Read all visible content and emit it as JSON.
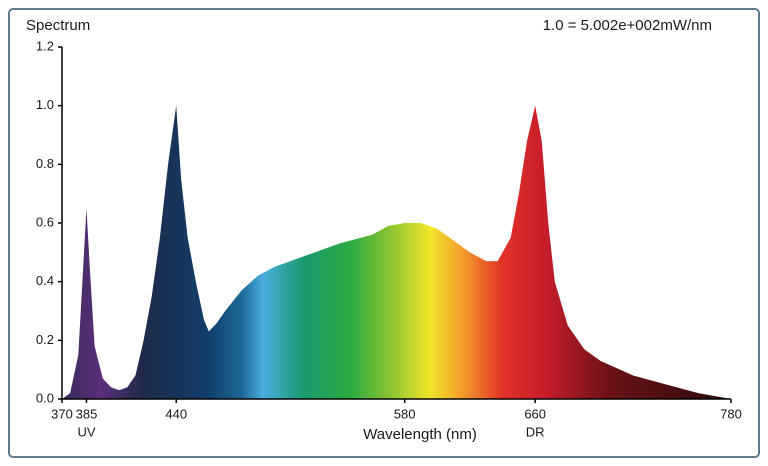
{
  "chart_data": {
    "type": "area",
    "title": "Spectrum",
    "annotation": "1.0 = 5.002e+002mW/nm",
    "x_label": "Wavelength (nm)",
    "x": [
      370,
      375,
      380,
      383,
      385,
      387,
      390,
      395,
      400,
      405,
      410,
      415,
      420,
      425,
      430,
      435,
      440,
      443,
      447,
      452,
      457,
      460,
      465,
      470,
      480,
      490,
      500,
      520,
      540,
      560,
      570,
      580,
      590,
      600,
      610,
      620,
      630,
      637,
      645,
      650,
      655,
      660,
      664,
      668,
      672,
      680,
      690,
      700,
      720,
      740,
      760,
      780
    ],
    "values": [
      0,
      0.02,
      0.15,
      0.45,
      0.65,
      0.45,
      0.18,
      0.07,
      0.04,
      0.03,
      0.04,
      0.08,
      0.2,
      0.35,
      0.55,
      0.8,
      1.0,
      0.75,
      0.55,
      0.4,
      0.27,
      0.23,
      0.26,
      0.3,
      0.37,
      0.42,
      0.45,
      0.49,
      0.53,
      0.56,
      0.59,
      0.6,
      0.6,
      0.58,
      0.54,
      0.5,
      0.47,
      0.47,
      0.55,
      0.7,
      0.88,
      1.0,
      0.88,
      0.6,
      0.4,
      0.25,
      0.17,
      0.13,
      0.08,
      0.05,
      0.02,
      0
    ],
    "xlim": [
      370,
      780
    ],
    "xticks": [
      370,
      385,
      440,
      580,
      660,
      780
    ],
    "x_tick_notes": [
      {
        "x": 385,
        "text": "UV"
      },
      {
        "x": 660,
        "text": "DR"
      }
    ],
    "ylim": [
      0,
      1.2
    ],
    "yticks": [
      {
        "value": 0,
        "label": "0.0"
      },
      0.2,
      0.4,
      0.6,
      0.8,
      {
        "value": 1,
        "label": "1.0"
      },
      1.2
    ]
  }
}
